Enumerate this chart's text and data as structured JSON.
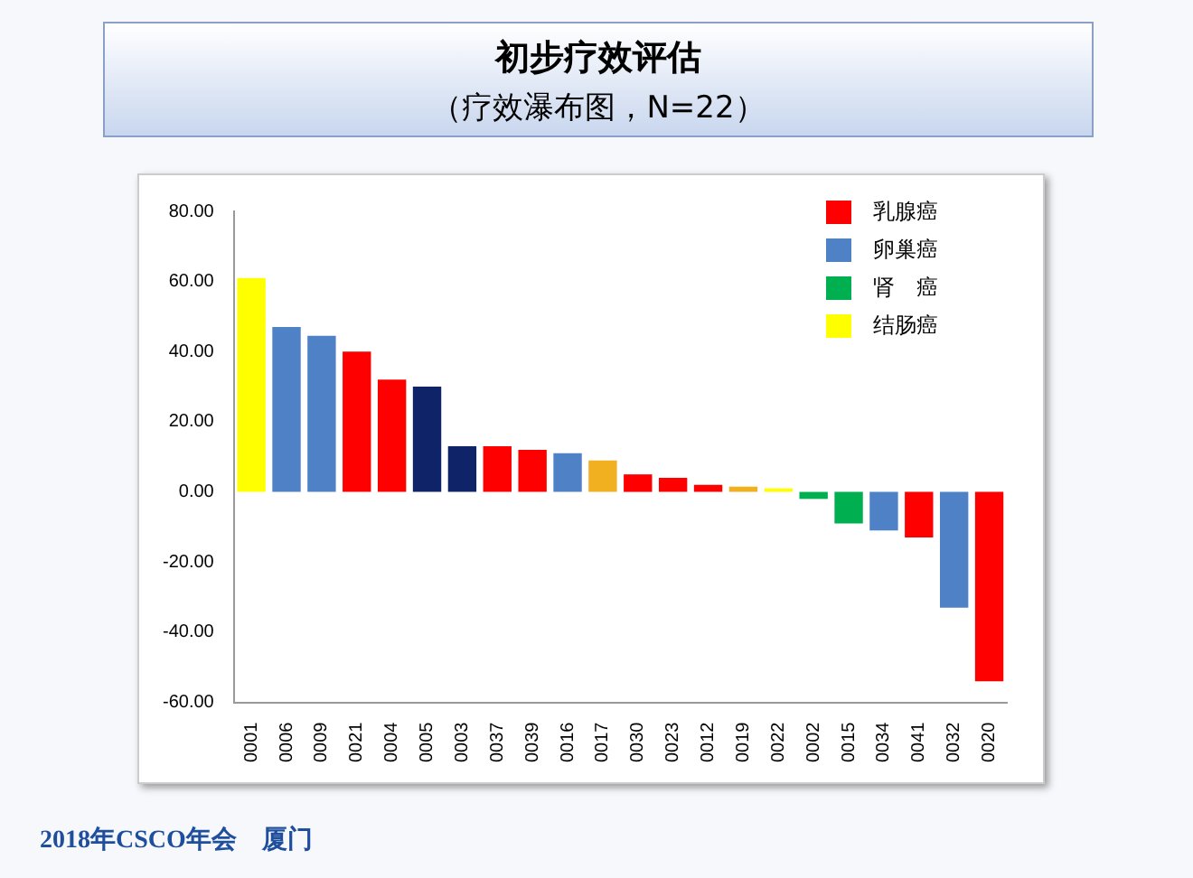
{
  "chart_data": {
    "type": "bar",
    "title": "初步疗效评估",
    "subtitle": "（疗效瀑布图，N=22）",
    "categories": [
      "0001",
      "0006",
      "0009",
      "0021",
      "0004",
      "0005",
      "0003",
      "0037",
      "0039",
      "0016",
      "0017",
      "0030",
      "0023",
      "0012",
      "0019",
      "0022",
      "0002",
      "0015",
      "0034",
      "0041",
      "0032",
      "0020"
    ],
    "stacked": true,
    "series": [
      {
        "name": "乳腺癌",
        "color": "#ff0000",
        "values": [
          null,
          null,
          null,
          40,
          32,
          null,
          null,
          13,
          12,
          null,
          null,
          5,
          4,
          2,
          null,
          null,
          null,
          null,
          null,
          -13,
          null,
          -54
        ]
      },
      {
        "name": "卵巢癌",
        "color": "#4f81c7",
        "values": [
          null,
          47,
          44.5,
          null,
          null,
          null,
          null,
          null,
          null,
          11,
          null,
          null,
          null,
          null,
          null,
          null,
          null,
          null,
          -11,
          null,
          -33,
          null
        ]
      },
      {
        "name": "肾　癌",
        "color": "#00b050",
        "values": [
          null,
          null,
          null,
          null,
          null,
          null,
          null,
          null,
          null,
          null,
          null,
          null,
          null,
          null,
          null,
          null,
          -2,
          -9,
          null,
          null,
          null,
          null
        ]
      },
      {
        "name": "结肠癌",
        "color": "#ffff00",
        "values": [
          61,
          null,
          null,
          null,
          null,
          null,
          null,
          null,
          null,
          null,
          null,
          null,
          null,
          null,
          null,
          1,
          null,
          null,
          null,
          null,
          null,
          null
        ]
      },
      {
        "color": "#0f2468",
        "values": [
          null,
          null,
          null,
          null,
          null,
          30,
          13,
          null,
          null,
          null,
          null,
          null,
          null,
          null,
          null,
          null,
          null,
          null,
          null,
          null,
          null,
          null
        ]
      },
      {
        "color": "#f0b020",
        "values": [
          null,
          null,
          null,
          null,
          null,
          null,
          null,
          null,
          null,
          null,
          9,
          null,
          null,
          null,
          1.5,
          null,
          null,
          null,
          null,
          null,
          null,
          null
        ]
      }
    ],
    "ylim": [
      -60,
      80
    ],
    "yticks": [
      {
        "value": -60,
        "label": "-60.00"
      },
      {
        "value": -40,
        "label": "-40.00"
      },
      {
        "value": -20,
        "label": "-20.00"
      },
      {
        "value": 0,
        "label": "0.00"
      },
      {
        "value": 20,
        "label": "20.00"
      },
      {
        "value": 40,
        "label": "40.00"
      },
      {
        "value": 60,
        "label": "60.00"
      },
      {
        "value": 80,
        "label": "80.00"
      }
    ],
    "grid": false,
    "legend": "top right",
    "annotations": [
      "2018年CSCO年会　厦门"
    ]
  }
}
